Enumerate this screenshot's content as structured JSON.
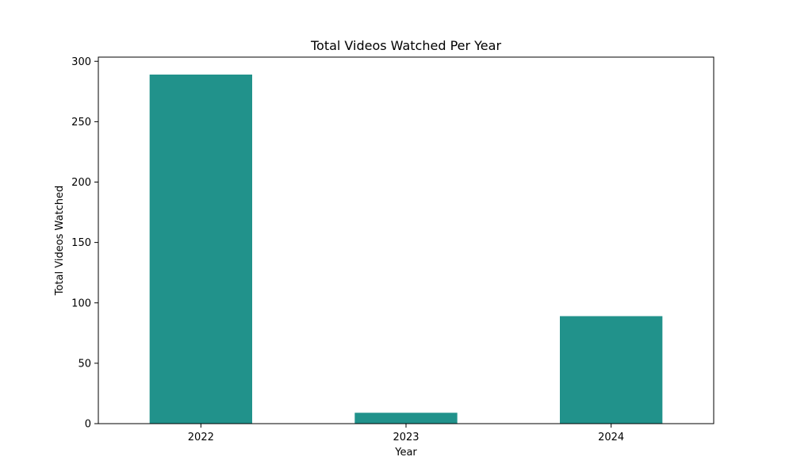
{
  "chart_data": {
    "type": "bar",
    "title": "Total Videos Watched Per Year",
    "xlabel": "Year",
    "ylabel": "Total Videos Watched",
    "categories": [
      "2022",
      "2023",
      "2024"
    ],
    "values": [
      289,
      9,
      89
    ],
    "ylim": [
      0,
      303.45
    ],
    "yticks": [
      0,
      50,
      100,
      150,
      200,
      250,
      300
    ],
    "bar_color": "#21928b",
    "grid": false,
    "legend": "none"
  }
}
